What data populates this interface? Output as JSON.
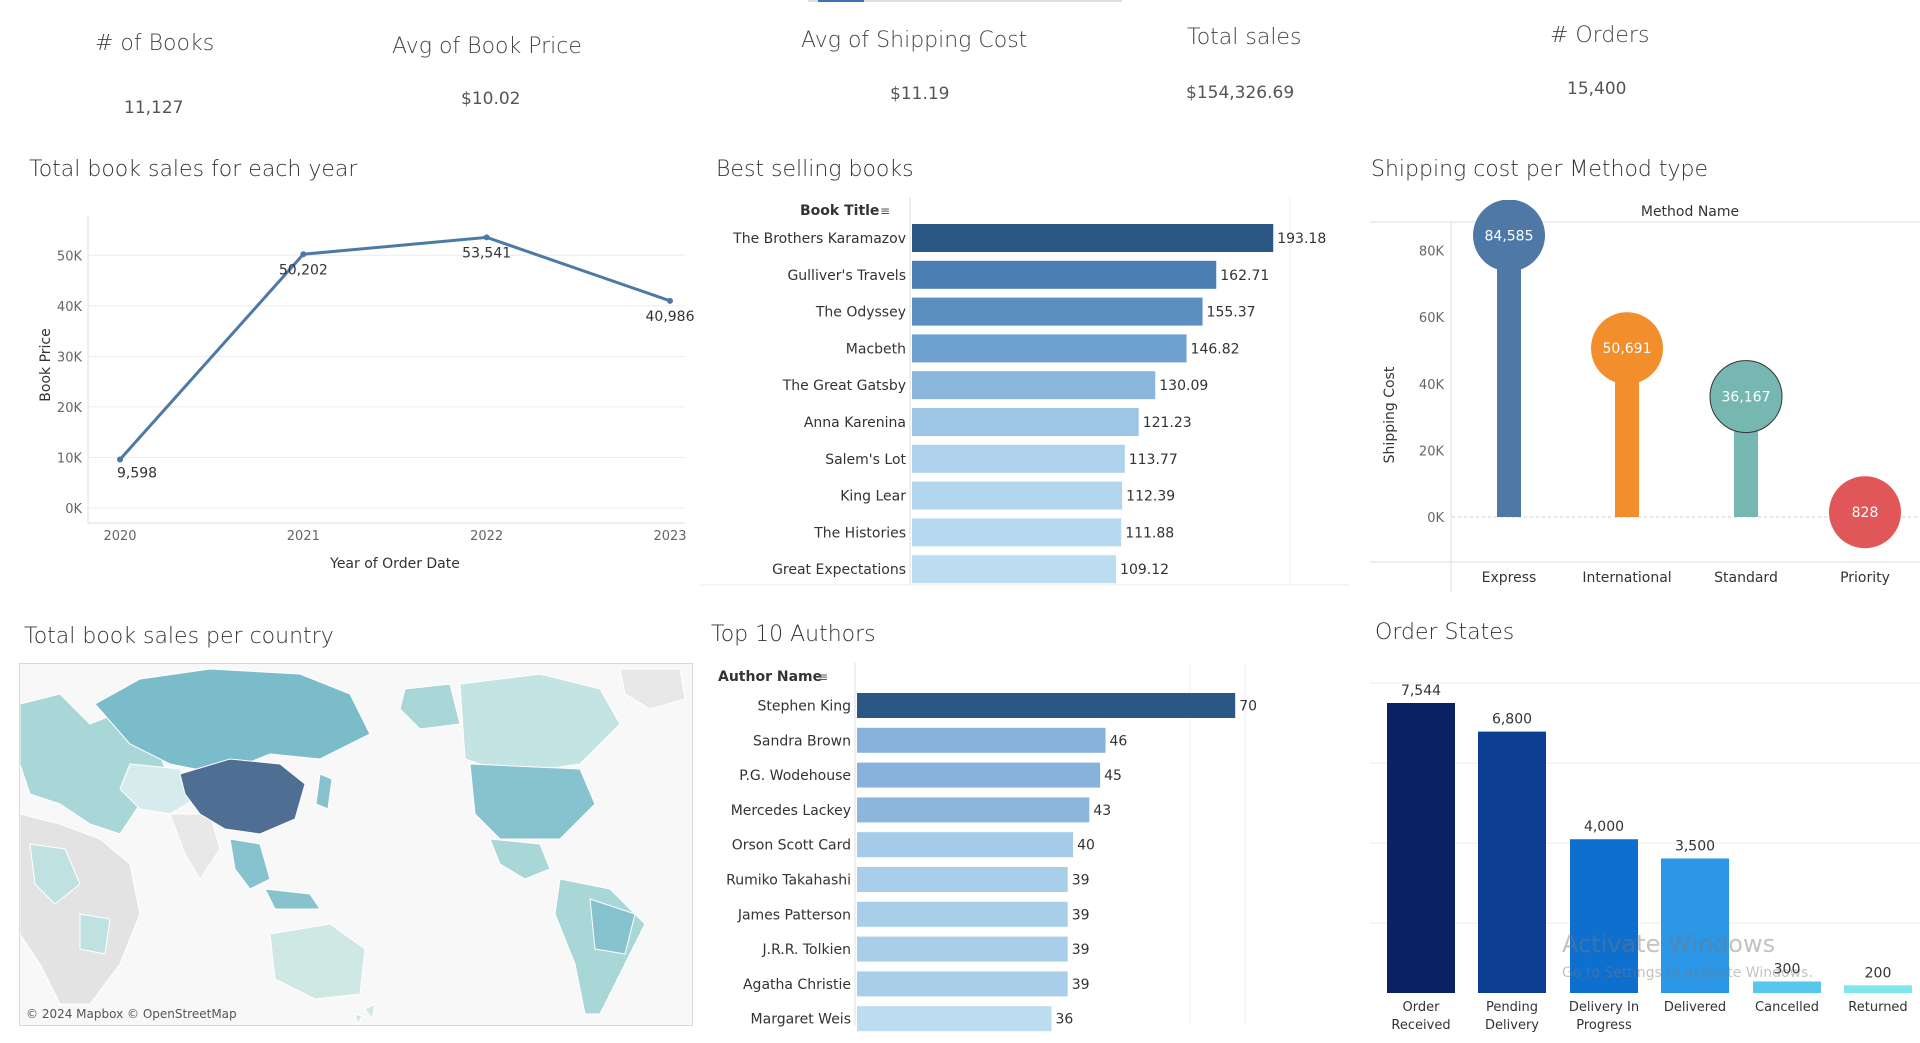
{
  "kpis": [
    {
      "title": "# of Books",
      "value": "11,127"
    },
    {
      "title": "Avg of Book Price",
      "value": "$10.02"
    },
    {
      "title": "Avg of Shipping Cost",
      "value": "$11.19"
    },
    {
      "title": "Total sales",
      "value": "$154,326.69"
    },
    {
      "title": "# Orders",
      "value": "15,400"
    }
  ],
  "sections": {
    "line_title": "Total book sales for each year",
    "books_title": "Best selling books",
    "shipping_title": "Shipping cost per Method type",
    "map_title": "Total book sales per country",
    "authors_title": "Top 10 Authors",
    "states_title": "Order States"
  },
  "map": {
    "attribution": "© 2024 Mapbox © OpenStreetMap",
    "highlight_color": "#4e6f93",
    "base_color": "#a9d6d6"
  },
  "watermark": {
    "line1": "Activate Windows",
    "line2": "Go to Settings to activate Windows."
  },
  "colors": {
    "line": "#4e79a7",
    "express": "#4e79a7",
    "international": "#f28e2b",
    "standard": "#76b7b2",
    "priority": "#e15759"
  },
  "chart_data": [
    {
      "type": "line",
      "title": "Total book sales for each year",
      "xlabel": "Year of Order Date",
      "ylabel": "Book Price",
      "x": [
        "2020",
        "2021",
        "2022",
        "2023"
      ],
      "values": [
        9598,
        50202,
        53541,
        40986
      ],
      "labels": [
        "9,598",
        "50,202",
        "53,541",
        "40,986"
      ],
      "yticks": [
        "0K",
        "10K",
        "20K",
        "30K",
        "40K",
        "50K"
      ],
      "ylim": [
        0,
        55000
      ]
    },
    {
      "type": "bar",
      "orientation": "horizontal",
      "title": "Best selling books",
      "xlabel": "",
      "ylabel": "Book Title",
      "categories": [
        "The Brothers Karamazov",
        "Gulliver's Travels",
        "The Odyssey",
        "Macbeth",
        "The Great Gatsby",
        "Anna Karenina",
        "Salem's Lot",
        "King Lear",
        "The Histories",
        "Great Expectations"
      ],
      "values": [
        193.18,
        162.71,
        155.37,
        146.82,
        130.09,
        121.23,
        113.77,
        112.39,
        111.88,
        109.12
      ],
      "labels": [
        "193.18",
        "162.71",
        "155.37",
        "146.82",
        "130.09",
        "121.23",
        "113.77",
        "112.39",
        "111.88",
        "109.12"
      ],
      "xlim": [
        0,
        200
      ]
    },
    {
      "type": "bar",
      "subtype": "lollipop",
      "title": "Shipping cost per Method type",
      "header": "Method Name",
      "ylabel": "Shipping Cost",
      "categories": [
        "Express",
        "International",
        "Standard",
        "Priority"
      ],
      "values": [
        84585,
        50691,
        36167,
        828
      ],
      "labels": [
        "84,585",
        "50,691",
        "36,167",
        "828"
      ],
      "yticks": [
        "0K",
        "20K",
        "40K",
        "60K",
        "80K"
      ],
      "ylim": [
        0,
        85000
      ]
    },
    {
      "type": "bar",
      "orientation": "horizontal",
      "title": "Top 10 Authors",
      "ylabel": "Author Name",
      "categories": [
        "Stephen King",
        "Sandra Brown",
        "P.G. Wodehouse",
        "Mercedes Lackey",
        "Orson Scott Card",
        "Rumiko Takahashi",
        "James Patterson",
        "J.R.R. Tolkien",
        "Agatha Christie",
        "Margaret Weis"
      ],
      "values": [
        70,
        46,
        45,
        43,
        40,
        39,
        39,
        39,
        39,
        36
      ],
      "labels": [
        "70",
        "46",
        "45",
        "43",
        "40",
        "39",
        "39",
        "39",
        "39",
        "36"
      ],
      "xlim": [
        0,
        72
      ]
    },
    {
      "type": "bar",
      "title": "Order States",
      "categories": [
        "Order Received",
        "Pending Delivery",
        "Delivery In Progress",
        "Delivered",
        "Cancelled",
        "Returned"
      ],
      "values": [
        7544,
        6800,
        4000,
        3500,
        300,
        200
      ],
      "labels": [
        "7,544",
        "6,800",
        "4,000",
        "3,500",
        "300",
        "200"
      ],
      "ylim": [
        0,
        8000
      ]
    }
  ]
}
